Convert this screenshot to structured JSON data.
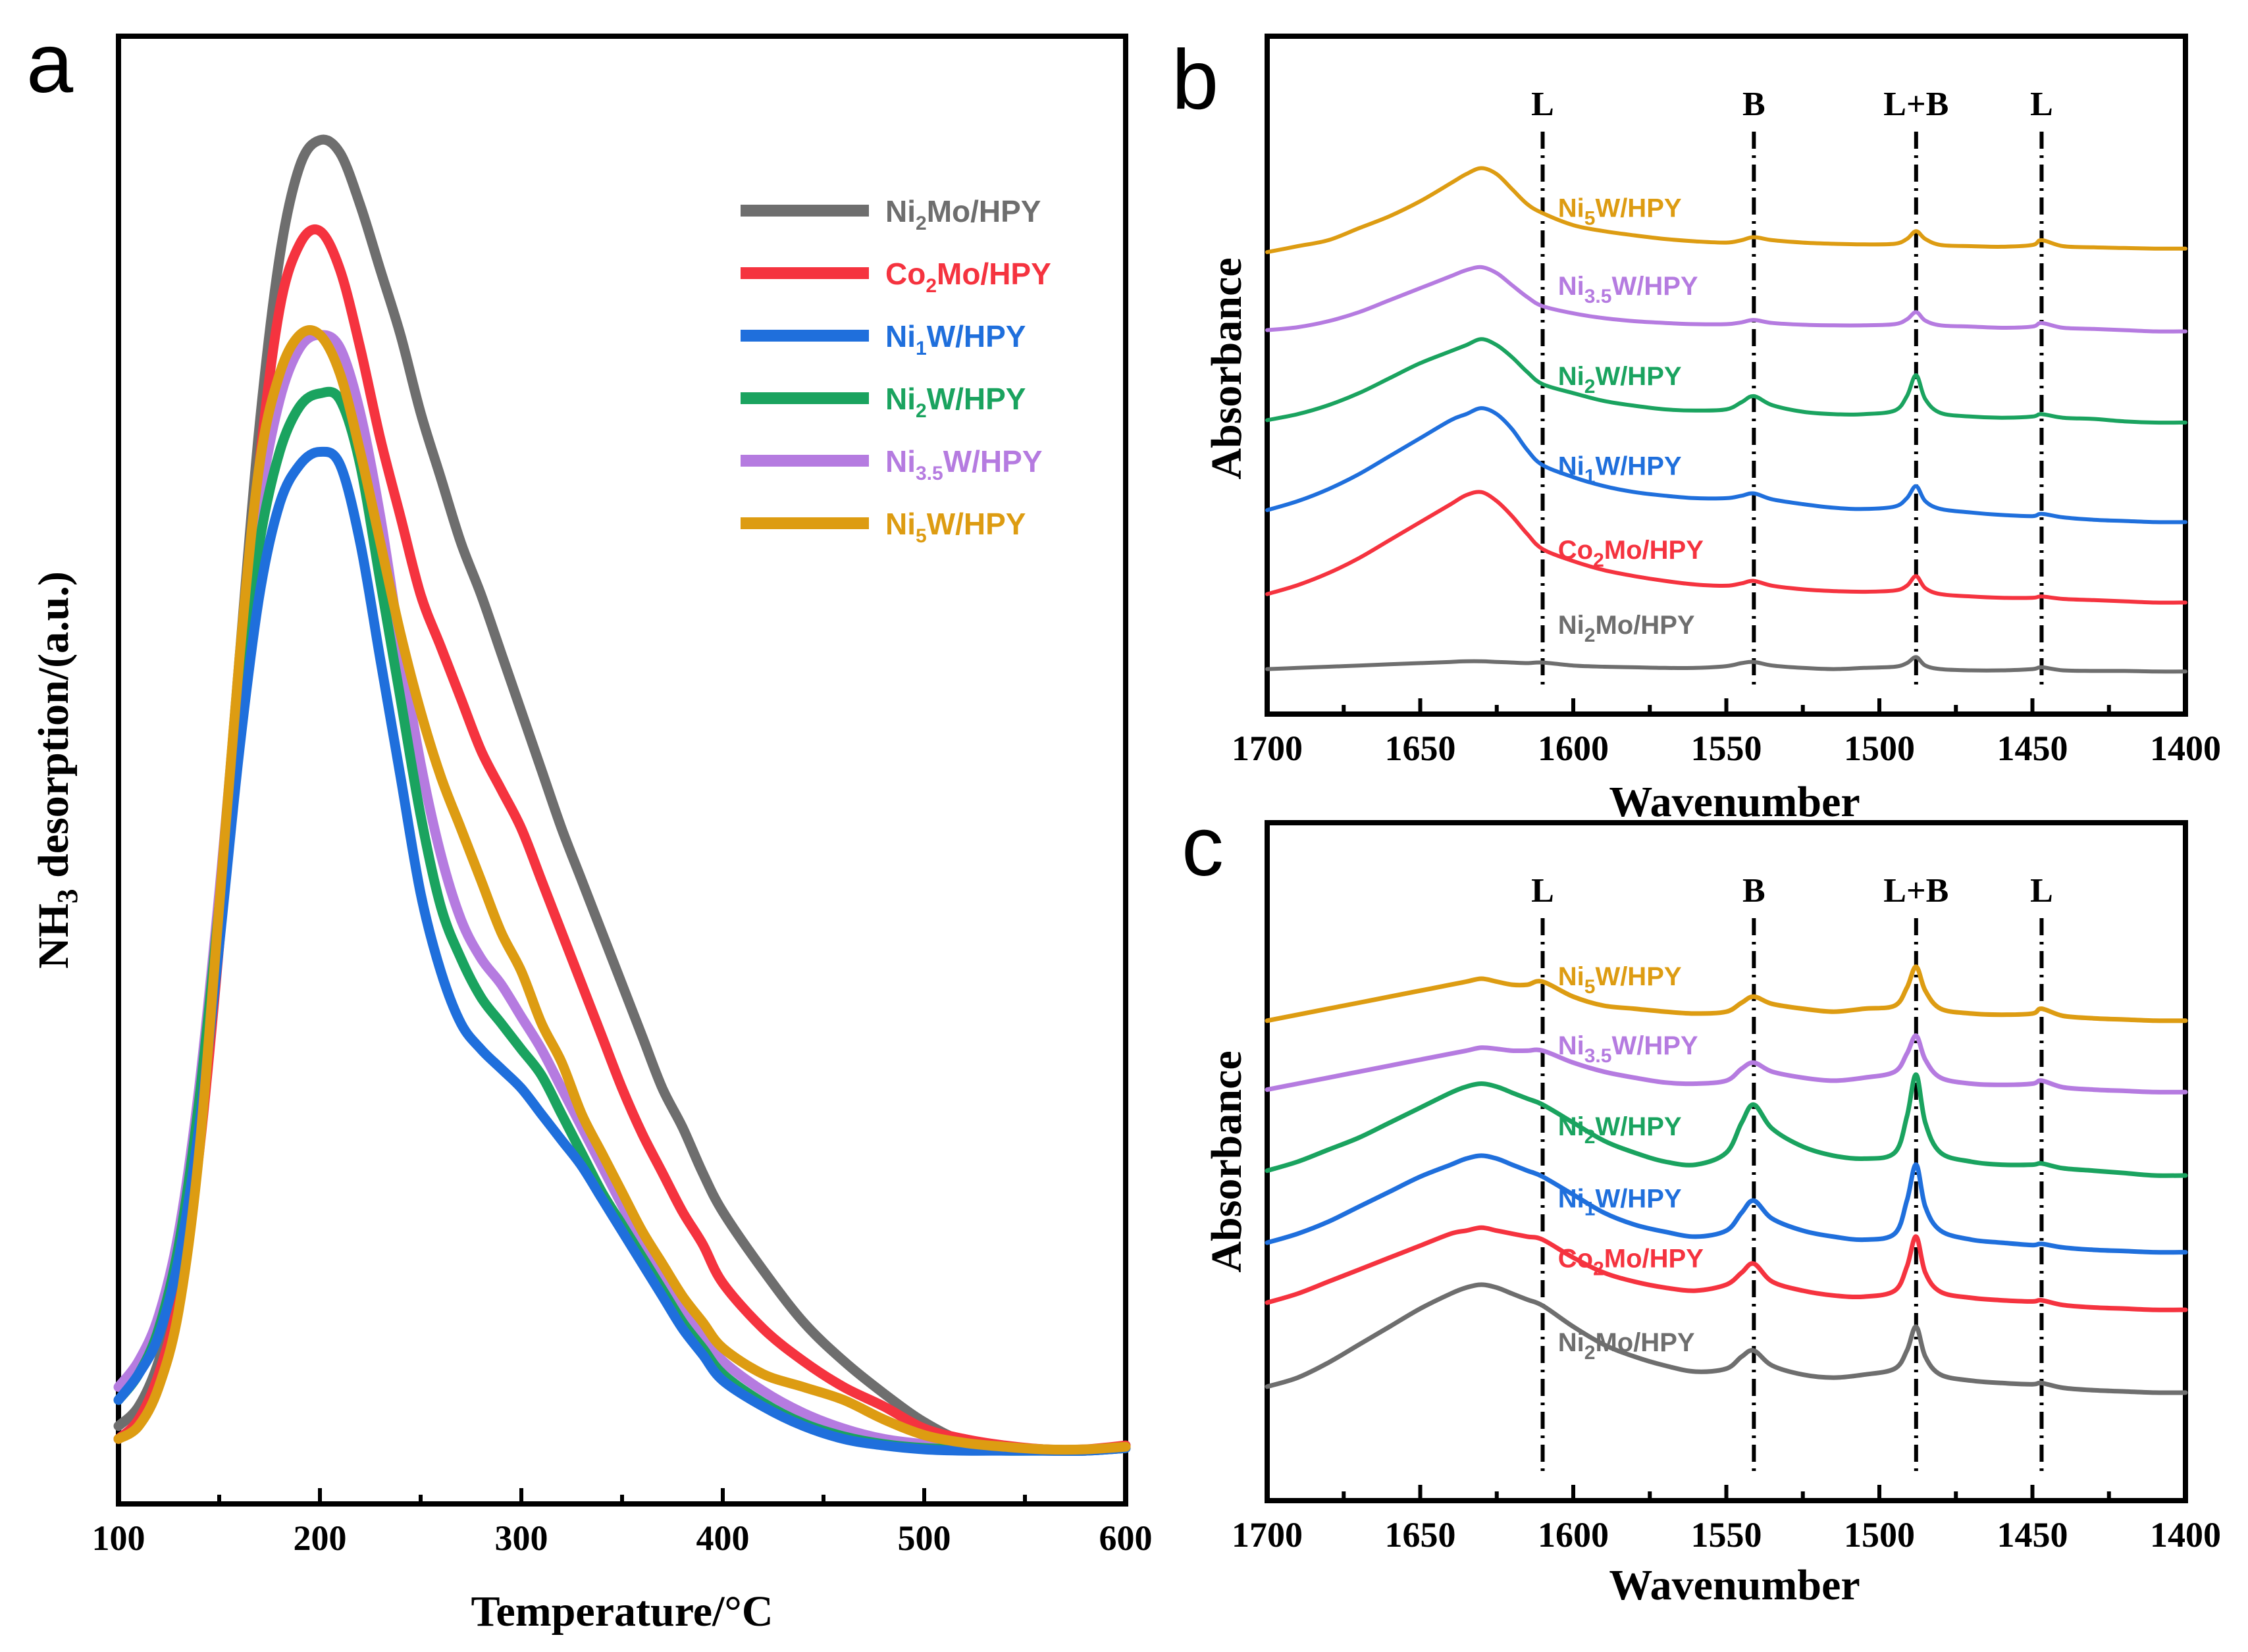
{
  "colors": {
    "Ni2Mo/HPY": "#6e6e6e",
    "Co2Mo/HPY": "#f5333f",
    "Ni1W/HPY": "#1f6fdc",
    "Ni2W/HPY": "#1aa35f",
    "Ni3.5W/HPY": "#b57be0",
    "Ni5W/HPY": "#dd9c12"
  },
  "chart_data": [
    {
      "panel": "a",
      "type": "line",
      "title": "",
      "xlabel": "Temperature/°C",
      "ylabel": "NH3 desorption/(a.u.)",
      "xlim": [
        100,
        600
      ],
      "ylim": [
        0,
        1.13
      ],
      "xticks": [
        100,
        200,
        300,
        400,
        500,
        600
      ],
      "yticks": [],
      "legend_position": "top-right",
      "x": [
        100,
        110,
        120,
        130,
        140,
        150,
        160,
        170,
        180,
        190,
        200,
        210,
        220,
        230,
        240,
        250,
        260,
        270,
        280,
        290,
        300,
        310,
        320,
        330,
        340,
        350,
        360,
        370,
        380,
        390,
        400,
        420,
        440,
        460,
        480,
        500,
        520,
        540,
        560,
        580,
        600
      ],
      "series": [
        {
          "name": "Ni2Mo/HPY",
          "values": [
            0.06,
            0.075,
            0.11,
            0.17,
            0.29,
            0.46,
            0.65,
            0.83,
            0.96,
            1.03,
            1.05,
            1.04,
            1.0,
            0.95,
            0.9,
            0.84,
            0.79,
            0.74,
            0.7,
            0.655,
            0.61,
            0.565,
            0.52,
            0.48,
            0.44,
            0.4,
            0.36,
            0.32,
            0.29,
            0.255,
            0.225,
            0.18,
            0.14,
            0.11,
            0.085,
            0.063,
            0.048,
            0.044,
            0.042,
            0.041,
            0.045
          ]
        },
        {
          "name": "Co2Mo/HPY",
          "values": [
            0.05,
            0.065,
            0.1,
            0.16,
            0.27,
            0.43,
            0.62,
            0.8,
            0.92,
            0.97,
            0.98,
            0.95,
            0.89,
            0.82,
            0.76,
            0.7,
            0.66,
            0.62,
            0.58,
            0.55,
            0.52,
            0.48,
            0.44,
            0.4,
            0.36,
            0.32,
            0.285,
            0.255,
            0.225,
            0.2,
            0.17,
            0.135,
            0.11,
            0.09,
            0.075,
            0.058,
            0.05,
            0.045,
            0.042,
            0.042,
            0.045
          ]
        },
        {
          "name": "Ni1W/HPY",
          "values": [
            0.08,
            0.1,
            0.13,
            0.19,
            0.29,
            0.43,
            0.58,
            0.7,
            0.77,
            0.8,
            0.81,
            0.8,
            0.74,
            0.65,
            0.56,
            0.47,
            0.41,
            0.37,
            0.35,
            0.335,
            0.32,
            0.3,
            0.28,
            0.26,
            0.235,
            0.21,
            0.185,
            0.16,
            0.135,
            0.115,
            0.095,
            0.075,
            0.06,
            0.05,
            0.045,
            0.042,
            0.041,
            0.041,
            0.041,
            0.041,
            0.043
          ]
        },
        {
          "name": "Ni2W/HPY",
          "values": [
            0.08,
            0.1,
            0.135,
            0.2,
            0.31,
            0.46,
            0.62,
            0.74,
            0.81,
            0.845,
            0.855,
            0.85,
            0.8,
            0.71,
            0.62,
            0.53,
            0.46,
            0.42,
            0.39,
            0.37,
            0.35,
            0.33,
            0.3,
            0.27,
            0.24,
            0.215,
            0.19,
            0.165,
            0.14,
            0.12,
            0.1,
            0.078,
            0.062,
            0.052,
            0.046,
            0.043,
            0.042,
            0.041,
            0.041,
            0.041,
            0.043
          ]
        },
        {
          "name": "Ni3.5W/HPY",
          "values": [
            0.09,
            0.11,
            0.145,
            0.21,
            0.32,
            0.47,
            0.64,
            0.77,
            0.85,
            0.89,
            0.9,
            0.89,
            0.84,
            0.76,
            0.66,
            0.57,
            0.5,
            0.45,
            0.42,
            0.4,
            0.375,
            0.35,
            0.32,
            0.29,
            0.26,
            0.23,
            0.2,
            0.175,
            0.15,
            0.13,
            0.11,
            0.087,
            0.07,
            0.058,
            0.05,
            0.046,
            0.043,
            0.042,
            0.041,
            0.041,
            0.043
          ]
        },
        {
          "name": "Ni5W/HPY",
          "values": [
            0.05,
            0.06,
            0.09,
            0.15,
            0.27,
            0.46,
            0.65,
            0.8,
            0.87,
            0.9,
            0.9,
            0.87,
            0.81,
            0.74,
            0.67,
            0.61,
            0.56,
            0.52,
            0.48,
            0.44,
            0.41,
            0.37,
            0.34,
            0.3,
            0.27,
            0.24,
            0.21,
            0.185,
            0.16,
            0.14,
            0.12,
            0.1,
            0.09,
            0.08,
            0.065,
            0.053,
            0.047,
            0.044,
            0.042,
            0.042,
            0.044
          ]
        }
      ]
    },
    {
      "panel": "b",
      "type": "line",
      "title": "",
      "xlabel": "Wavenumber",
      "ylabel": "Absorbance",
      "xlim": [
        1700,
        1400
      ],
      "ylim": [
        0,
        1.13
      ],
      "xticks": [
        1700,
        1650,
        1600,
        1550,
        1500,
        1450,
        1400
      ],
      "yticks": [],
      "band_markers": [
        {
          "label": "L",
          "x": 1610
        },
        {
          "label": "B",
          "x": 1541
        },
        {
          "label": "L+B",
          "x": 1488
        },
        {
          "label": "L",
          "x": 1447
        }
      ],
      "x": [
        1700,
        1690,
        1680,
        1670,
        1660,
        1650,
        1640,
        1635,
        1630,
        1625,
        1620,
        1615,
        1610,
        1600,
        1590,
        1580,
        1570,
        1560,
        1550,
        1545,
        1541,
        1535,
        1525,
        1515,
        1505,
        1495,
        1491,
        1488,
        1485,
        1480,
        1470,
        1460,
        1450,
        1447,
        1440,
        1430,
        1420,
        1410,
        1400
      ],
      "series": [
        {
          "name": "Ni5W/HPY",
          "offset": 0.77,
          "values": [
            0.0,
            0.01,
            0.02,
            0.04,
            0.06,
            0.085,
            0.115,
            0.13,
            0.14,
            0.13,
            0.105,
            0.08,
            0.065,
            0.045,
            0.035,
            0.028,
            0.022,
            0.018,
            0.016,
            0.02,
            0.025,
            0.02,
            0.016,
            0.014,
            0.013,
            0.014,
            0.022,
            0.035,
            0.022,
            0.012,
            0.01,
            0.009,
            0.012,
            0.02,
            0.01,
            0.008,
            0.007,
            0.006,
            0.006
          ]
        },
        {
          "name": "Ni3.5W/HPY",
          "offset": 0.64,
          "values": [
            0.0,
            0.005,
            0.015,
            0.03,
            0.05,
            0.07,
            0.09,
            0.1,
            0.105,
            0.095,
            0.075,
            0.055,
            0.04,
            0.028,
            0.02,
            0.015,
            0.012,
            0.01,
            0.01,
            0.013,
            0.017,
            0.012,
            0.009,
            0.008,
            0.008,
            0.01,
            0.018,
            0.03,
            0.016,
            0.008,
            0.006,
            0.004,
            0.006,
            0.012,
            0.004,
            0.002,
            0.0,
            -0.002,
            -0.002
          ]
        },
        {
          "name": "Ni2W/HPY",
          "offset": 0.49,
          "values": [
            0.0,
            0.01,
            0.025,
            0.045,
            0.07,
            0.095,
            0.115,
            0.125,
            0.135,
            0.125,
            0.105,
            0.08,
            0.06,
            0.045,
            0.032,
            0.024,
            0.018,
            0.016,
            0.018,
            0.03,
            0.04,
            0.025,
            0.014,
            0.01,
            0.01,
            0.016,
            0.04,
            0.075,
            0.035,
            0.012,
            0.006,
            0.004,
            0.006,
            0.01,
            0.004,
            0.002,
            -0.002,
            -0.004,
            -0.004
          ]
        },
        {
          "name": "Ni1W/HPY",
          "offset": 0.34,
          "values": [
            0.0,
            0.015,
            0.035,
            0.06,
            0.09,
            0.12,
            0.15,
            0.16,
            0.17,
            0.16,
            0.135,
            0.1,
            0.075,
            0.055,
            0.04,
            0.03,
            0.024,
            0.02,
            0.02,
            0.024,
            0.028,
            0.018,
            0.01,
            0.004,
            0.002,
            0.006,
            0.02,
            0.04,
            0.015,
            0.002,
            -0.004,
            -0.008,
            -0.01,
            -0.006,
            -0.012,
            -0.016,
            -0.018,
            -0.02,
            -0.02
          ]
        },
        {
          "name": "Co2Mo/HPY",
          "offset": 0.2,
          "values": [
            0.0,
            0.015,
            0.035,
            0.06,
            0.09,
            0.12,
            0.15,
            0.165,
            0.17,
            0.155,
            0.13,
            0.1,
            0.075,
            0.055,
            0.04,
            0.03,
            0.022,
            0.016,
            0.014,
            0.018,
            0.022,
            0.014,
            0.008,
            0.005,
            0.004,
            0.006,
            0.014,
            0.03,
            0.01,
            0.0,
            -0.004,
            -0.006,
            -0.006,
            -0.004,
            -0.008,
            -0.01,
            -0.012,
            -0.014,
            -0.014
          ]
        },
        {
          "name": "Ni2Mo/HPY",
          "offset": 0.075,
          "values": [
            0.0,
            0.002,
            0.004,
            0.006,
            0.008,
            0.01,
            0.012,
            0.013,
            0.013,
            0.012,
            0.011,
            0.01,
            0.011,
            0.006,
            0.004,
            0.003,
            0.002,
            0.002,
            0.005,
            0.01,
            0.012,
            0.006,
            0.002,
            0.0,
            0.002,
            0.004,
            0.01,
            0.02,
            0.006,
            0.0,
            -0.002,
            -0.002,
            0.0,
            0.003,
            -0.002,
            -0.003,
            -0.003,
            -0.004,
            -0.004
          ]
        }
      ]
    },
    {
      "panel": "c",
      "type": "line",
      "title": "",
      "xlabel": "Wavenumber",
      "ylabel": "Absorbance",
      "xlim": [
        1700,
        1400
      ],
      "ylim": [
        0,
        1.13
      ],
      "xticks": [
        1700,
        1650,
        1600,
        1550,
        1500,
        1450,
        1400
      ],
      "yticks": [],
      "band_markers": [
        {
          "label": "L",
          "x": 1610
        },
        {
          "label": "B",
          "x": 1541
        },
        {
          "label": "L+B",
          "x": 1488
        },
        {
          "label": "L",
          "x": 1447
        }
      ],
      "x": [
        1700,
        1690,
        1680,
        1670,
        1660,
        1650,
        1640,
        1635,
        1630,
        1625,
        1620,
        1615,
        1610,
        1600,
        1590,
        1580,
        1570,
        1560,
        1550,
        1545,
        1541,
        1535,
        1525,
        1515,
        1505,
        1495,
        1491,
        1488,
        1485,
        1480,
        1470,
        1460,
        1450,
        1447,
        1440,
        1430,
        1420,
        1410,
        1400
      ],
      "series": [
        {
          "name": "Ni5W/HPY",
          "offset": 0.8,
          "values": [
            0.0,
            0.01,
            0.02,
            0.03,
            0.04,
            0.05,
            0.06,
            0.065,
            0.07,
            0.065,
            0.06,
            0.06,
            0.065,
            0.04,
            0.025,
            0.02,
            0.015,
            0.012,
            0.015,
            0.03,
            0.04,
            0.028,
            0.02,
            0.015,
            0.02,
            0.025,
            0.055,
            0.09,
            0.05,
            0.02,
            0.012,
            0.01,
            0.012,
            0.02,
            0.008,
            0.004,
            0.002,
            0.0,
            0.0
          ]
        },
        {
          "name": "Ni3.5W/HPY",
          "offset": 0.685,
          "values": [
            0.0,
            0.01,
            0.02,
            0.03,
            0.04,
            0.05,
            0.06,
            0.065,
            0.07,
            0.068,
            0.065,
            0.065,
            0.065,
            0.045,
            0.03,
            0.02,
            0.012,
            0.01,
            0.015,
            0.035,
            0.045,
            0.03,
            0.02,
            0.015,
            0.02,
            0.03,
            0.06,
            0.09,
            0.05,
            0.02,
            0.01,
            0.008,
            0.01,
            0.015,
            0.004,
            0.0,
            -0.002,
            -0.004,
            -0.004
          ]
        },
        {
          "name": "Ni2W/HPY",
          "offset": 0.55,
          "values": [
            0.0,
            0.015,
            0.035,
            0.055,
            0.08,
            0.105,
            0.13,
            0.14,
            0.145,
            0.14,
            0.13,
            0.12,
            0.11,
            0.08,
            0.05,
            0.03,
            0.015,
            0.01,
            0.03,
            0.08,
            0.11,
            0.07,
            0.04,
            0.025,
            0.02,
            0.03,
            0.09,
            0.16,
            0.08,
            0.03,
            0.015,
            0.01,
            0.01,
            0.012,
            0.004,
            0.0,
            -0.004,
            -0.008,
            -0.008
          ]
        },
        {
          "name": "Ni1W/HPY",
          "offset": 0.43,
          "values": [
            0.0,
            0.015,
            0.035,
            0.06,
            0.085,
            0.11,
            0.13,
            0.14,
            0.145,
            0.14,
            0.13,
            0.12,
            0.11,
            0.08,
            0.05,
            0.03,
            0.018,
            0.01,
            0.02,
            0.05,
            0.07,
            0.04,
            0.02,
            0.01,
            0.005,
            0.015,
            0.07,
            0.13,
            0.06,
            0.02,
            0.005,
            0.0,
            -0.004,
            -0.002,
            -0.008,
            -0.012,
            -0.014,
            -0.016,
            -0.016
          ]
        },
        {
          "name": "Co2Mo/HPY",
          "offset": 0.33,
          "values": [
            0.0,
            0.015,
            0.035,
            0.055,
            0.075,
            0.095,
            0.115,
            0.12,
            0.125,
            0.12,
            0.115,
            0.11,
            0.105,
            0.075,
            0.05,
            0.035,
            0.025,
            0.02,
            0.03,
            0.05,
            0.065,
            0.035,
            0.02,
            0.012,
            0.01,
            0.02,
            0.06,
            0.11,
            0.05,
            0.018,
            0.008,
            0.004,
            0.002,
            0.004,
            -0.004,
            -0.008,
            -0.01,
            -0.012,
            -0.012
          ]
        },
        {
          "name": "Ni2Mo/HPY",
          "offset": 0.19,
          "values": [
            0.0,
            0.015,
            0.04,
            0.07,
            0.1,
            0.13,
            0.155,
            0.165,
            0.17,
            0.165,
            0.155,
            0.145,
            0.135,
            0.1,
            0.07,
            0.05,
            0.035,
            0.025,
            0.03,
            0.05,
            0.06,
            0.035,
            0.02,
            0.015,
            0.02,
            0.03,
            0.06,
            0.1,
            0.05,
            0.02,
            0.01,
            0.006,
            0.004,
            0.006,
            -0.002,
            -0.006,
            -0.008,
            -0.01,
            -0.01
          ]
        }
      ]
    }
  ],
  "series_label_parts": {
    "Ni2Mo/HPY": [
      "Ni",
      "2",
      "Mo/HPY"
    ],
    "Co2Mo/HPY": [
      "Co",
      "2",
      "Mo/HPY"
    ],
    "Ni1W/HPY": [
      "Ni",
      "1",
      "W/HPY"
    ],
    "Ni2W/HPY": [
      "Ni",
      "2",
      "W/HPY"
    ],
    "Ni3.5W/HPY": [
      "Ni",
      "3.5",
      "W/HPY"
    ],
    "Ni5W/HPY": [
      "Ni",
      "5",
      "W/HPY"
    ]
  },
  "panel_labels": [
    "a",
    "b",
    "c"
  ]
}
